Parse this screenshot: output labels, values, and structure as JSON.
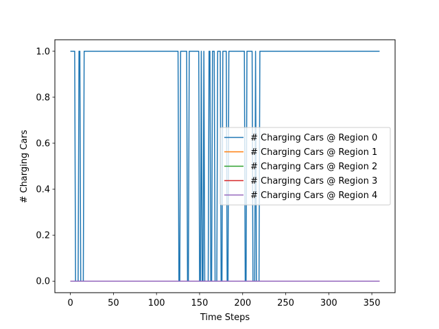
{
  "chart_data": {
    "type": "line",
    "title": "",
    "xlabel": "Time Steps",
    "ylabel": "# Charging Cars",
    "xlim": [
      -18,
      377
    ],
    "ylim": [
      -0.05,
      1.05
    ],
    "x_ticks": [
      0,
      50,
      100,
      150,
      200,
      250,
      300,
      350
    ],
    "y_ticks": [
      0.0,
      0.2,
      0.4,
      0.6,
      0.8,
      1.0
    ],
    "x_tick_labels": [
      "0",
      "50",
      "100",
      "150",
      "200",
      "250",
      "300",
      "350"
    ],
    "y_tick_labels": [
      "0.0",
      "0.2",
      "0.4",
      "0.6",
      "0.8",
      "1.0"
    ],
    "legend_position": "center-right",
    "grid": false,
    "series": [
      {
        "name": "# Charging Cars @ Region 0",
        "color": "#1f77b4",
        "x_max": 359,
        "zero_intervals": [
          [
            6,
            9
          ],
          [
            12,
            15
          ],
          [
            126,
            127
          ],
          [
            136,
            137
          ],
          [
            150,
            151
          ],
          [
            153,
            154
          ],
          [
            156,
            157
          ],
          [
            158,
            160
          ],
          [
            163,
            164
          ],
          [
            168,
            170
          ],
          [
            175,
            176
          ],
          [
            182,
            183
          ],
          [
            203,
            204
          ],
          [
            212,
            214
          ],
          [
            216,
            217
          ],
          [
            218,
            219
          ]
        ]
      },
      {
        "name": "# Charging Cars @ Region 1",
        "color": "#ff7f0e",
        "constant": 0,
        "x_max": 359
      },
      {
        "name": "# Charging Cars @ Region 2",
        "color": "#2ca02c",
        "constant": 0,
        "x_max": 359
      },
      {
        "name": "# Charging Cars @ Region 3",
        "color": "#d62728",
        "constant": 0,
        "x_max": 359
      },
      {
        "name": "# Charging Cars @ Region 4",
        "color": "#9467bd",
        "constant": 0,
        "x_max": 359
      }
    ]
  }
}
